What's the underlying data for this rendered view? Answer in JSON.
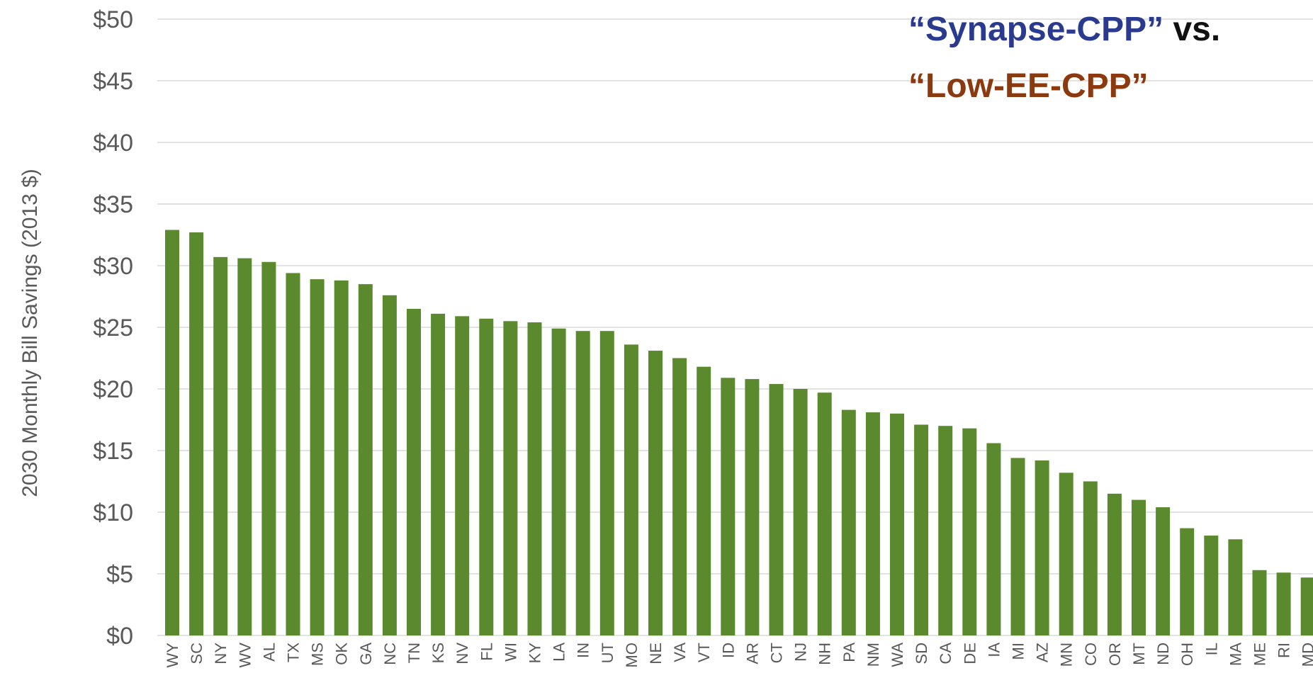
{
  "chart_data": {
    "type": "bar",
    "headline": {
      "part1": "“Synapse-CPP”",
      "part2": " vs.",
      "part3": "“Low-EE-CPP”"
    },
    "ylabel": "2030 Monthly Bill Savings (2013 $)",
    "xlabel": "",
    "ylim": [
      0,
      50
    ],
    "yticks": [
      "$0",
      "$5",
      "$10",
      "$15",
      "$20",
      "$25",
      "$30",
      "$35",
      "$40",
      "$45",
      "$50"
    ],
    "ytick_values": [
      0,
      5,
      10,
      15,
      20,
      25,
      30,
      35,
      40,
      45,
      50
    ],
    "grid": true,
    "categories": [
      "WY",
      "SC",
      "NY",
      "WV",
      "AL",
      "TX",
      "MS",
      "OK",
      "GA",
      "NC",
      "TN",
      "KS",
      "NV",
      "FL",
      "WI",
      "KY",
      "LA",
      "IN",
      "UT",
      "MO",
      "NE",
      "VA",
      "VT",
      "ID",
      "AR",
      "CT",
      "NJ",
      "NH",
      "PA",
      "NM",
      "WA",
      "SD",
      "CA",
      "DE",
      "IA",
      "MI",
      "AZ",
      "MN",
      "CO",
      "OR",
      "MT",
      "ND",
      "OH",
      "IL",
      "MA",
      "ME",
      "RI",
      "MD"
    ],
    "values": [
      32.9,
      32.7,
      30.7,
      30.6,
      30.3,
      29.4,
      28.9,
      28.8,
      28.5,
      27.6,
      26.5,
      26.1,
      25.9,
      25.7,
      25.5,
      25.4,
      24.9,
      24.7,
      24.7,
      23.6,
      23.1,
      22.5,
      21.8,
      20.9,
      20.8,
      20.4,
      20.0,
      19.7,
      18.3,
      18.1,
      18.0,
      17.1,
      17.0,
      16.8,
      15.6,
      14.4,
      14.2,
      13.2,
      12.5,
      11.5,
      11.0,
      10.4,
      8.7,
      8.1,
      7.8,
      5.3,
      5.1,
      4.7
    ]
  },
  "colors": {
    "bar": "#5b8a2e",
    "grid": "#d9d9d9",
    "headline_blue": "#2a3a8f",
    "headline_black": "#111111",
    "headline_brown": "#8b3a0f"
  }
}
